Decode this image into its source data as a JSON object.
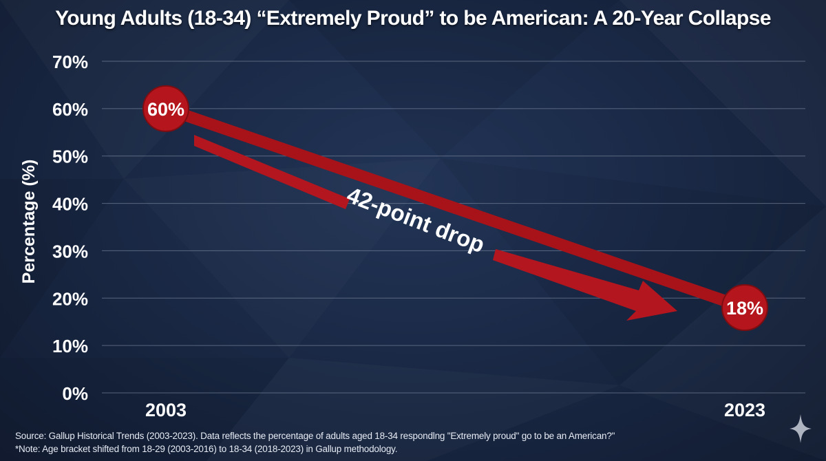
{
  "chart_data": {
    "type": "line",
    "title": "Young Adults (18-34) “Extremely Proud” to be American: A 20-Year Collapse",
    "xlabel": "",
    "ylabel": "Percentage (%)",
    "ylim": [
      0,
      70
    ],
    "yticks": [
      "0%",
      "10%",
      "20%",
      "30%",
      "40%",
      "50%",
      "60%",
      "70%"
    ],
    "grid": true,
    "categories": [
      "2003",
      "2023"
    ],
    "series": [
      {
        "values": [
          60,
          18
        ],
        "point_labels": [
          "60%",
          "18%"
        ]
      }
    ],
    "annotations": [
      {
        "text": "42-point drop"
      }
    ],
    "colors": {
      "line": "#a8131a",
      "marker": "#b5151d",
      "arrow": "#b3161e",
      "text": "#ffffff",
      "grid": "#8f9ab0"
    }
  },
  "footer": {
    "source": "Source: Gallup Historical Trends (2003-2023). Data reflects the percentage of adults aged 18-34 respondlng \"Extremely proud\" go to be an American?\"",
    "note": "*Note: Age bracket shifted from 18-29 (2003-2016) to 18-34 (2018-2023) in Gallup methodology."
  },
  "icons": {
    "corner": "sparkle-icon"
  }
}
